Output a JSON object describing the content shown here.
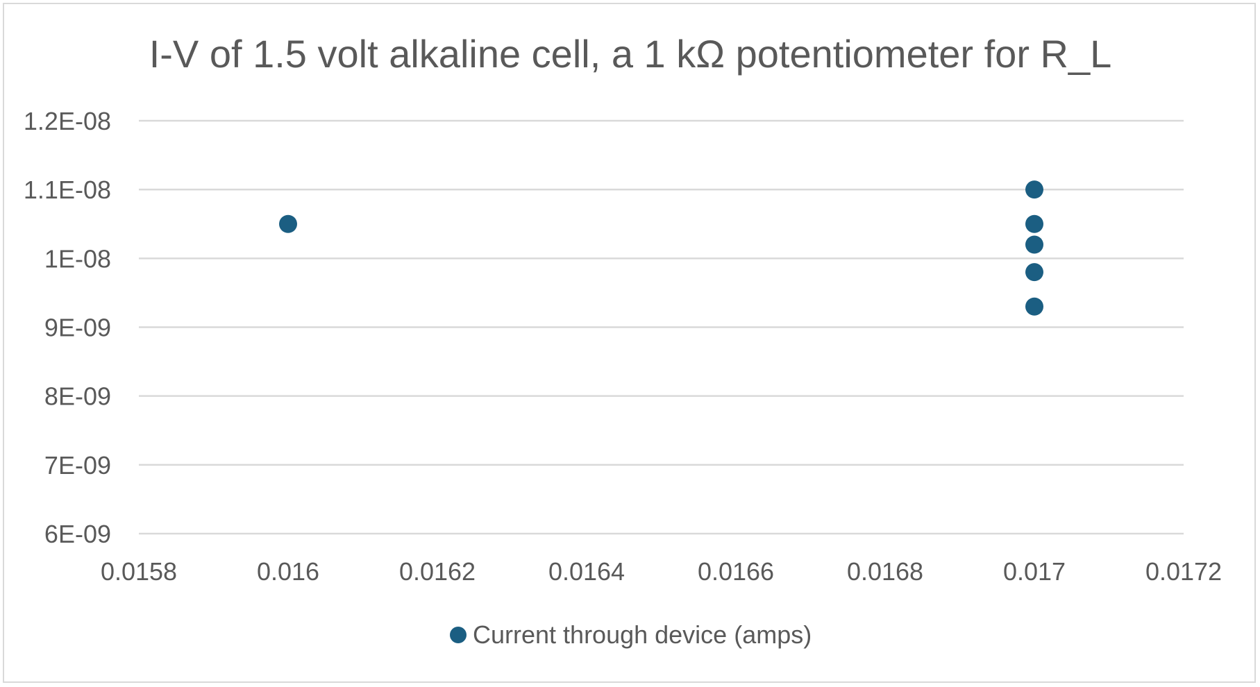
{
  "chart_data": {
    "type": "scatter",
    "title": "I-V of 1.5 volt alkaline cell, a 1 kΩ potentiometer for R_L",
    "xlabel": "",
    "ylabel": "",
    "xlim": [
      0.0158,
      0.0172
    ],
    "ylim": [
      6e-09,
      1.2e-08
    ],
    "x_ticks": [
      "0.0158",
      "0.016",
      "0.0162",
      "0.0164",
      "0.0166",
      "0.0168",
      "0.017",
      "0.0172"
    ],
    "y_ticks": [
      "6E-09",
      "7E-09",
      "8E-09",
      "9E-09",
      "1E-08",
      "1.1E-08",
      "1.2E-08"
    ],
    "grid": "horizontal major gridlines",
    "legend_position": "bottom",
    "series": [
      {
        "name": "Current through device (amps)",
        "color": "#1b5e82",
        "marker": "circle",
        "points": [
          {
            "x": 0.016,
            "y": 1.05e-08
          },
          {
            "x": 0.017,
            "y": 1.1e-08
          },
          {
            "x": 0.017,
            "y": 1.05e-08
          },
          {
            "x": 0.017,
            "y": 1.02e-08
          },
          {
            "x": 0.017,
            "y": 9.8e-09
          },
          {
            "x": 0.017,
            "y": 9.3e-09
          }
        ]
      }
    ]
  }
}
